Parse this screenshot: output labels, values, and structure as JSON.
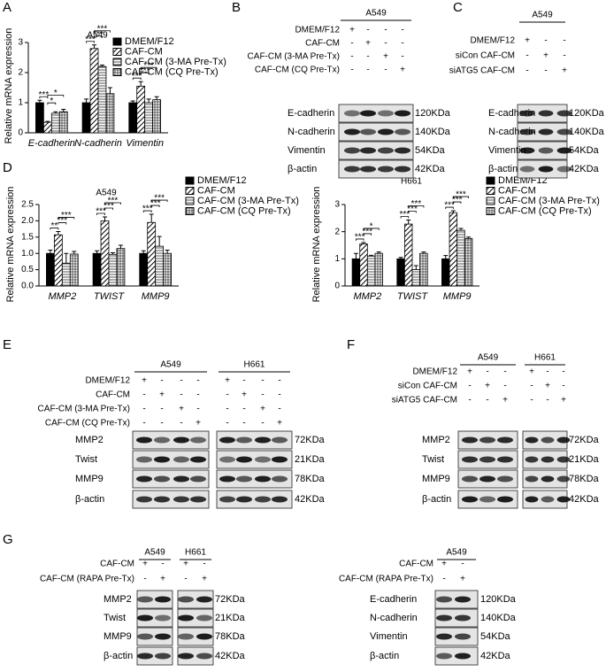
{
  "panel_letters": [
    "A",
    "B",
    "C",
    "D",
    "E",
    "F",
    "G"
  ],
  "chart_data": [
    {
      "type": "bar",
      "title": "A549",
      "y_label": "Relative mRNA expression",
      "categories": [
        "E-cadherin",
        "N-cadherin",
        "Vimentin"
      ],
      "ylim": [
        0,
        3
      ],
      "yticks": [
        0,
        1,
        2,
        3
      ],
      "series": [
        {
          "name": "DMEM/F12",
          "color": "#000000",
          "pattern": "solid",
          "values": [
            1.0,
            1.0,
            1.0
          ],
          "errors": [
            0.08,
            0.12,
            0.06
          ]
        },
        {
          "name": "CAF-CM",
          "color": "#000000",
          "pattern": "diagonal",
          "values": [
            0.35,
            2.8,
            1.55
          ],
          "errors": [
            0.03,
            0.12,
            0.15
          ]
        },
        {
          "name": "CAF-CM (3-MA Pre-Tx)",
          "color": "#000000",
          "pattern": "horizontal",
          "values": [
            0.65,
            2.2,
            1.0
          ],
          "errors": [
            0.05,
            0.05,
            0.12
          ]
        },
        {
          "name": "CAF-CM (CQ Pre-Tx)",
          "color": "#000000",
          "pattern": "grid",
          "values": [
            0.7,
            1.3,
            1.1
          ],
          "errors": [
            0.08,
            0.2,
            0.1
          ]
        }
      ],
      "annotations": [
        "***",
        "*",
        "*",
        "***",
        "***",
        "***",
        "***",
        "***",
        "***"
      ]
    },
    {
      "type": "bar",
      "title": "A549",
      "y_label": "Relative mRNA expression",
      "categories": [
        "MMP2",
        "TWIST",
        "MMP9"
      ],
      "ylim": [
        0,
        2.5
      ],
      "yticks": [
        {
          "value": 0,
          "label": "0.0"
        },
        0.5,
        {
          "value": 1,
          "label": "1.0"
        },
        1.5,
        {
          "value": 2,
          "label": "2.0"
        },
        2.5
      ],
      "series": [
        {
          "name": "DMEM/F12",
          "color": "#000000",
          "pattern": "solid",
          "values": [
            1.0,
            1.0,
            1.0
          ],
          "errors": [
            0.1,
            0.08,
            0.08
          ]
        },
        {
          "name": "CAF-CM",
          "color": "#000000",
          "pattern": "diagonal",
          "values": [
            1.57,
            2.0,
            1.95
          ],
          "errors": [
            0.1,
            0.12,
            0.25
          ]
        },
        {
          "name": "CAF-CM (3-MA Pre-Tx)",
          "color": "#000000",
          "pattern": "horizontal",
          "values": [
            0.7,
            0.97,
            1.22
          ],
          "errors": [
            0.3,
            0.05,
            0.3
          ]
        },
        {
          "name": "CAF-CM (CQ Pre-Tx)",
          "color": "#000000",
          "pattern": "grid",
          "values": [
            0.98,
            1.15,
            1.0
          ],
          "errors": [
            0.08,
            0.1,
            0.1
          ]
        }
      ],
      "annotations": [
        "**",
        "***",
        "***",
        "***",
        "***",
        "***",
        "***",
        "***",
        "***"
      ]
    },
    {
      "type": "bar",
      "title": "H661",
      "y_label": "Relative mRNA expression",
      "categories": [
        "MMP2",
        "TWIST",
        "MMP9"
      ],
      "ylim": [
        0,
        3
      ],
      "yticks": [
        0,
        1,
        2,
        3
      ],
      "series": [
        {
          "name": "DMEM/F12",
          "color": "#000000",
          "pattern": "solid",
          "values": [
            1.0,
            1.0,
            1.0
          ],
          "errors": [
            0.2,
            0.05,
            0.12
          ]
        },
        {
          "name": "CAF-CM",
          "color": "#000000",
          "pattern": "diagonal",
          "values": [
            1.55,
            2.28,
            2.7
          ],
          "errors": [
            0.05,
            0.15,
            0.07
          ]
        },
        {
          "name": "CAF-CM (3-MA Pre-Tx)",
          "color": "#000000",
          "pattern": "horizontal",
          "values": [
            1.1,
            0.6,
            2.05
          ],
          "errors": [
            0.03,
            0.15,
            0.07
          ]
        },
        {
          "name": "CAF-CM (CQ Pre-Tx)",
          "color": "#000000",
          "pattern": "grid",
          "values": [
            1.2,
            1.2,
            1.75
          ],
          "errors": [
            0.05,
            0.05,
            0.05
          ]
        }
      ],
      "annotations": [
        "***",
        "***",
        "*",
        "***",
        "***",
        "***",
        "***",
        "***",
        "***"
      ]
    }
  ],
  "blots": [
    {
      "conditions": [
        "DMEM/F12",
        "CAF-CM",
        "CAF-CM (3-MA Pre-Tx)",
        "CAF-CM (CQ Pre-Tx)"
      ],
      "groups": [
        {
          "cell": "A549",
          "signs": [
            [
              "+",
              "-",
              "-",
              "-"
            ],
            [
              "-",
              "+",
              "-",
              "-"
            ],
            [
              "-",
              "-",
              "+",
              "-"
            ],
            [
              "-",
              "-",
              "-",
              "+"
            ]
          ]
        }
      ],
      "proteins": [
        {
          "name": "E-cadherin",
          "size": "120KDa"
        },
        {
          "name": "N-cadherin",
          "size": "140KDa"
        },
        {
          "name": "Vimentin",
          "size": "54KDa"
        },
        {
          "name": "β-actin",
          "size": "42KDa"
        }
      ]
    },
    {
      "conditions": [
        "DMEM/F12",
        "siCon CAF-CM",
        "siATG5 CAF-CM"
      ],
      "groups": [
        {
          "cell": "A549",
          "signs": [
            [
              "+",
              "-",
              "-"
            ],
            [
              "-",
              "+",
              "-"
            ],
            [
              "-",
              "-",
              "+"
            ]
          ]
        }
      ],
      "proteins": [
        {
          "name": "E-cadherin",
          "size": "120KDa"
        },
        {
          "name": "N-cadherin",
          "size": "140KDa"
        },
        {
          "name": "Vimentin",
          "size": "54KDa"
        },
        {
          "name": "β-actin",
          "size": "42KDa"
        }
      ]
    },
    {
      "conditions": [
        "DMEM/F12",
        "CAF-CM",
        "CAF-CM (3-MA Pre-Tx)",
        "CAF-CM (CQ Pre-Tx)"
      ],
      "groups": [
        {
          "cell": "A549",
          "signs": [
            [
              "+",
              "-",
              "-",
              "-"
            ],
            [
              "-",
              "+",
              "-",
              "-"
            ],
            [
              "-",
              "-",
              "+",
              "-"
            ],
            [
              "-",
              "-",
              "-",
              "+"
            ]
          ]
        },
        {
          "cell": "H661",
          "signs": [
            [
              "+",
              "-",
              "-",
              "-"
            ],
            [
              "-",
              "+",
              "-",
              "-"
            ],
            [
              "-",
              "-",
              "+",
              "-"
            ],
            [
              "-",
              "-",
              "-",
              "+"
            ]
          ]
        }
      ],
      "proteins": [
        {
          "name": "MMP2",
          "size": "72KDa"
        },
        {
          "name": "Twist",
          "size": "21KDa"
        },
        {
          "name": "MMP9",
          "size": "78KDa"
        },
        {
          "name": "β-actin",
          "size": "42KDa"
        }
      ]
    },
    {
      "conditions": [
        "DMEM/F12",
        "siCon CAF-CM",
        "siATG5 CAF-CM"
      ],
      "groups": [
        {
          "cell": "A549",
          "signs": [
            [
              "+",
              "-",
              "-"
            ],
            [
              "-",
              "+",
              "-"
            ],
            [
              "-",
              "-",
              "+"
            ]
          ]
        },
        {
          "cell": "H661",
          "signs": [
            [
              "+",
              "-",
              "-"
            ],
            [
              "-",
              "+",
              "-"
            ],
            [
              "-",
              "-",
              "+"
            ]
          ]
        }
      ],
      "proteins": [
        {
          "name": "MMP2",
          "size": "72KDa"
        },
        {
          "name": "Twist",
          "size": "21KDa"
        },
        {
          "name": "MMP9",
          "size": "78KDa"
        },
        {
          "name": "β-actin",
          "size": "42KDa"
        }
      ]
    },
    {
      "conditions": [
        "CAF-CM",
        "CAF-CM (RAPA Pre-Tx)"
      ],
      "groups": [
        {
          "cell": "A549",
          "signs": [
            [
              "+",
              "-"
            ],
            [
              "-",
              "+"
            ]
          ]
        },
        {
          "cell": "H661",
          "signs": [
            [
              "+",
              "-"
            ],
            [
              "-",
              "+"
            ]
          ]
        }
      ],
      "proteins": [
        {
          "name": "MMP2",
          "size": "72KDa"
        },
        {
          "name": "Twist",
          "size": "21KDa"
        },
        {
          "name": "MMP9",
          "size": "78KDa"
        },
        {
          "name": "β-actin",
          "size": "42KDa"
        }
      ]
    },
    {
      "conditions": [
        "CAF-CM",
        "CAF-CM (RAPA Pre-Tx)"
      ],
      "groups": [
        {
          "cell": "A549",
          "signs": [
            [
              "+",
              "-"
            ],
            [
              "-",
              "+"
            ]
          ]
        }
      ],
      "proteins": [
        {
          "name": "E-cadherin",
          "size": "120KDa"
        },
        {
          "name": "N-cadherin",
          "size": "140KDa"
        },
        {
          "name": "Vimentin",
          "size": "54KDa"
        },
        {
          "name": "β-actin",
          "size": "42KDa"
        }
      ]
    }
  ]
}
